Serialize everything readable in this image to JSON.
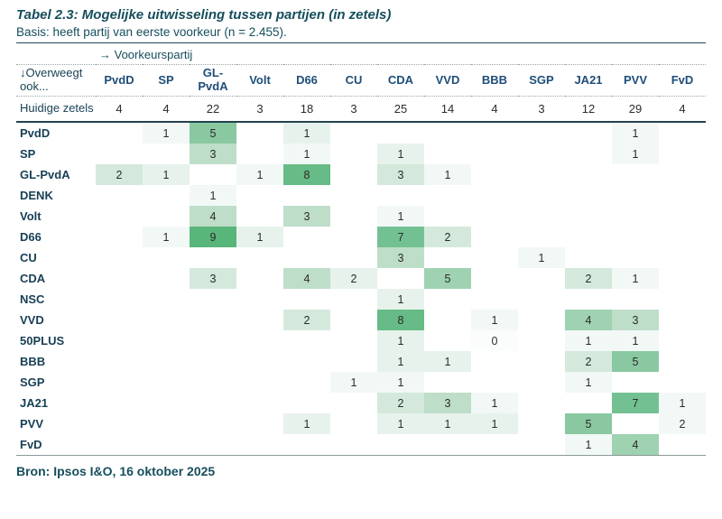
{
  "title": "Tabel 2.3: Mogelijke uitwisseling tussen partijen (in zetels)",
  "subtitle": "Basis: heeft partij van eerste voorkeur (n = 2.455).",
  "axis_label": "→ Voorkeurspartij",
  "corner_label": "↓Overweegt ook...",
  "zetels_label": "Huidige zetels",
  "source": "Bron: Ipsos I&O, 16 oktober 2025",
  "colors": {
    "title_teal": "#164e5c",
    "column_header_navy": "#1f4e79",
    "row_label_navy": "#173f54",
    "cell_text": "#2b2b2b",
    "heat_scale": [
      "#fbfdfc",
      "#f2f8f6",
      "#e7f2ec",
      "#d4e9dc",
      "#bedec9",
      "#9fd2b1",
      "#89c8a1",
      "#73c193",
      "#66bb86",
      "#58b67b"
    ]
  },
  "chart_data": {
    "type": "heatmap",
    "title": "Tabel 2.3: Mogelijke uitwisseling tussen partijen (in zetels)",
    "x_axis_label": "Voorkeurspartij",
    "y_axis_label": "Overweegt ook",
    "columns": [
      "PvdD",
      "SP",
      "GL-PvdA",
      "Volt",
      "D66",
      "CU",
      "CDA",
      "VVD",
      "BBB",
      "SGP",
      "JA21",
      "PVV",
      "FvD"
    ],
    "huidige_zetels": [
      4,
      4,
      22,
      3,
      18,
      3,
      25,
      14,
      4,
      3,
      12,
      29,
      4
    ],
    "rows": [
      {
        "label": "PvdD",
        "values": [
          null,
          1,
          5,
          null,
          1,
          null,
          null,
          null,
          null,
          null,
          null,
          1,
          null
        ],
        "levels": [
          null,
          1,
          6,
          null,
          2,
          null,
          null,
          null,
          null,
          null,
          null,
          1,
          null
        ]
      },
      {
        "label": "SP",
        "values": [
          null,
          null,
          3,
          null,
          1,
          null,
          1,
          null,
          null,
          null,
          null,
          1,
          null
        ],
        "levels": [
          null,
          null,
          4,
          null,
          1,
          null,
          2,
          null,
          null,
          null,
          null,
          1,
          null
        ]
      },
      {
        "label": "GL-PvdA",
        "values": [
          2,
          1,
          null,
          1,
          8,
          null,
          3,
          1,
          null,
          null,
          null,
          null,
          null
        ],
        "levels": [
          3,
          2,
          null,
          1,
          8,
          null,
          3,
          1,
          null,
          null,
          null,
          null,
          null
        ]
      },
      {
        "label": "DENK",
        "values": [
          null,
          null,
          1,
          null,
          null,
          null,
          null,
          null,
          null,
          null,
          null,
          null,
          null
        ],
        "levels": [
          null,
          null,
          1,
          null,
          null,
          null,
          null,
          null,
          null,
          null,
          null,
          null,
          null
        ]
      },
      {
        "label": "Volt",
        "values": [
          null,
          null,
          4,
          null,
          3,
          null,
          1,
          null,
          null,
          null,
          null,
          null,
          null
        ],
        "levels": [
          null,
          null,
          4,
          null,
          4,
          null,
          1,
          null,
          null,
          null,
          null,
          null,
          null
        ]
      },
      {
        "label": "D66",
        "values": [
          null,
          1,
          9,
          1,
          null,
          null,
          7,
          2,
          null,
          null,
          null,
          null,
          null
        ],
        "levels": [
          null,
          1,
          9,
          2,
          null,
          null,
          7,
          3,
          null,
          null,
          null,
          null,
          null
        ]
      },
      {
        "label": "CU",
        "values": [
          null,
          null,
          null,
          null,
          null,
          null,
          3,
          null,
          null,
          1,
          null,
          null,
          null
        ],
        "levels": [
          null,
          null,
          null,
          null,
          null,
          null,
          4,
          null,
          null,
          1,
          null,
          null,
          null
        ]
      },
      {
        "label": "CDA",
        "values": [
          null,
          null,
          3,
          null,
          4,
          2,
          null,
          5,
          null,
          null,
          2,
          1,
          null
        ],
        "levels": [
          null,
          null,
          3,
          null,
          4,
          2,
          null,
          5,
          null,
          null,
          3,
          1,
          null
        ]
      },
      {
        "label": "NSC",
        "values": [
          null,
          null,
          null,
          null,
          null,
          null,
          1,
          null,
          null,
          null,
          null,
          null,
          null
        ],
        "levels": [
          null,
          null,
          null,
          null,
          null,
          null,
          2,
          null,
          null,
          null,
          null,
          null,
          null
        ]
      },
      {
        "label": "VVD",
        "values": [
          null,
          null,
          null,
          null,
          2,
          null,
          8,
          null,
          1,
          null,
          4,
          3,
          null
        ],
        "levels": [
          null,
          null,
          null,
          null,
          3,
          null,
          8,
          null,
          1,
          null,
          5,
          4,
          null
        ]
      },
      {
        "label": "50PLUS",
        "values": [
          null,
          null,
          null,
          null,
          null,
          null,
          1,
          null,
          0,
          null,
          1,
          1,
          null
        ],
        "levels": [
          null,
          null,
          null,
          null,
          null,
          null,
          2,
          null,
          0,
          null,
          1,
          1,
          null
        ]
      },
      {
        "label": "BBB",
        "values": [
          null,
          null,
          null,
          null,
          null,
          null,
          1,
          1,
          null,
          null,
          2,
          5,
          null
        ],
        "levels": [
          null,
          null,
          null,
          null,
          null,
          null,
          2,
          2,
          null,
          null,
          3,
          6,
          null
        ]
      },
      {
        "label": "SGP",
        "values": [
          null,
          null,
          null,
          null,
          null,
          1,
          1,
          null,
          null,
          null,
          1,
          null,
          null
        ],
        "levels": [
          null,
          null,
          null,
          null,
          null,
          1,
          1,
          null,
          null,
          null,
          1,
          null,
          null
        ]
      },
      {
        "label": "JA21",
        "values": [
          null,
          null,
          null,
          null,
          null,
          null,
          2,
          3,
          1,
          null,
          null,
          7,
          1
        ],
        "levels": [
          null,
          null,
          null,
          null,
          null,
          null,
          3,
          4,
          1,
          null,
          null,
          7,
          1
        ]
      },
      {
        "label": "PVV",
        "values": [
          null,
          null,
          null,
          null,
          1,
          null,
          1,
          1,
          1,
          null,
          5,
          null,
          2
        ],
        "levels": [
          null,
          null,
          null,
          null,
          2,
          null,
          2,
          2,
          2,
          null,
          6,
          null,
          1
        ]
      },
      {
        "label": "FvD",
        "values": [
          null,
          null,
          null,
          null,
          null,
          null,
          null,
          null,
          null,
          null,
          1,
          4,
          null
        ],
        "levels": [
          null,
          null,
          null,
          null,
          null,
          null,
          null,
          null,
          null,
          null,
          1,
          5,
          null
        ]
      }
    ]
  }
}
